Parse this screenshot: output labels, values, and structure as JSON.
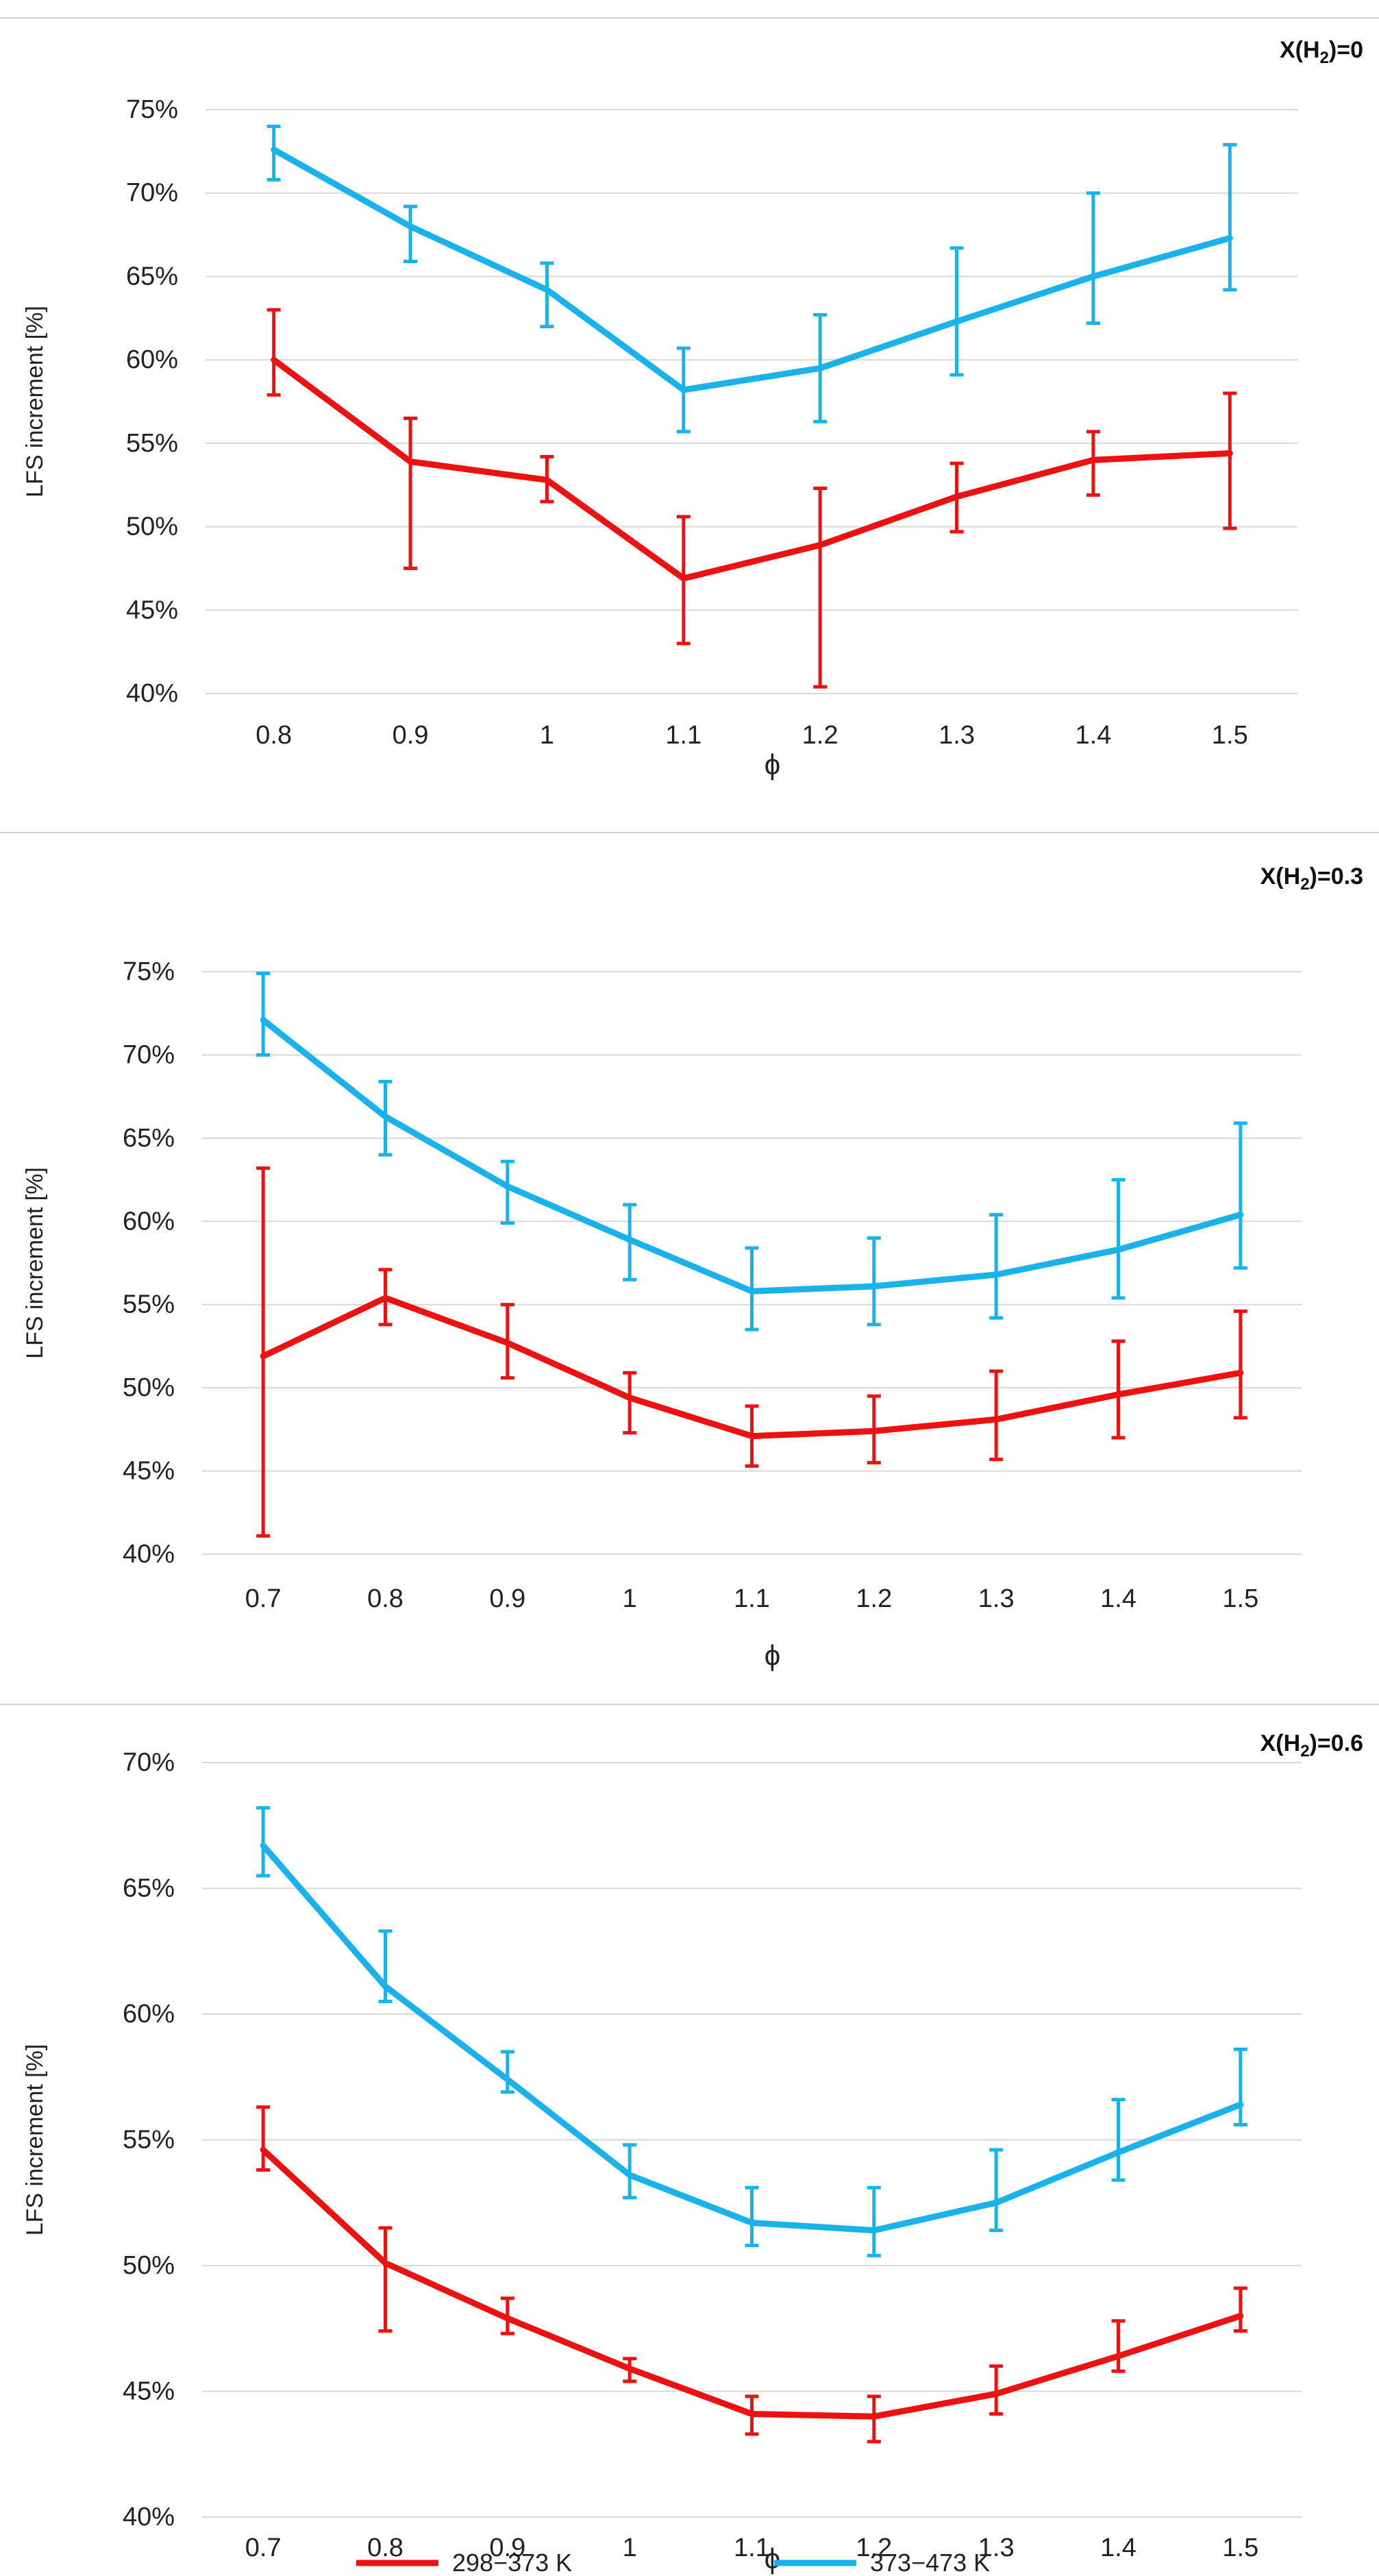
{
  "colors": {
    "series_298_373": "#ee1111",
    "series_373_473": "#1ab2ea",
    "grid": "#d9d9d9",
    "text": "#222222"
  },
  "legend": [
    "298−373 K",
    "373−473 K"
  ],
  "chart_data": [
    {
      "type": "line",
      "title": "X(H2)=0",
      "title_parts": {
        "pre": "X(H",
        "sub": "2",
        "post": ")=0"
      },
      "xlabel": "ϕ",
      "ylabel": "LFS increment [%]",
      "ylim": [
        40,
        75
      ],
      "yticks": [
        "40%",
        "45%",
        "50%",
        "55%",
        "60%",
        "65%",
        "70%",
        "75%"
      ],
      "categories": [
        "0.8",
        "0.9",
        "1",
        "1.1",
        "1.2",
        "1.3",
        "1.4",
        "1.5"
      ],
      "series": [
        {
          "name": "298−373 K",
          "values": [
            60.0,
            53.9,
            52.8,
            46.9,
            48.9,
            51.8,
            54.0,
            54.4
          ],
          "err_high": [
            63.0,
            56.5,
            54.2,
            50.6,
            52.3,
            53.8,
            55.7,
            58.0
          ],
          "err_low": [
            57.9,
            47.5,
            51.5,
            43.0,
            40.4,
            49.7,
            51.9,
            49.9
          ]
        },
        {
          "name": "373−473 K",
          "values": [
            72.6,
            68.0,
            64.2,
            58.2,
            59.5,
            62.3,
            65.0,
            67.3
          ],
          "err_high": [
            74.0,
            69.2,
            65.8,
            60.7,
            62.7,
            66.7,
            70.0,
            72.9
          ],
          "err_low": [
            70.8,
            65.9,
            62.0,
            55.7,
            56.3,
            59.1,
            62.2,
            64.2
          ]
        }
      ]
    },
    {
      "type": "line",
      "title": "X(H2)=0.3",
      "title_parts": {
        "pre": "X(H",
        "sub": "2",
        "post": ")=0.3"
      },
      "xlabel": "ϕ",
      "ylabel": "LFS increment [%]",
      "ylim": [
        40,
        75
      ],
      "yticks": [
        "40%",
        "45%",
        "50%",
        "55%",
        "60%",
        "65%",
        "70%",
        "75%"
      ],
      "categories": [
        "0.7",
        "0.8",
        "0.9",
        "1",
        "1.1",
        "1.2",
        "1.3",
        "1.4",
        "1.5"
      ],
      "series": [
        {
          "name": "298−373 K",
          "values": [
            51.9,
            55.4,
            52.7,
            49.4,
            47.1,
            47.4,
            48.1,
            49.6,
            50.9
          ],
          "err_high": [
            63.2,
            57.1,
            55.0,
            50.9,
            48.9,
            49.5,
            51.0,
            52.8,
            54.6
          ],
          "err_low": [
            41.1,
            53.8,
            50.6,
            47.3,
            45.3,
            45.5,
            45.7,
            47.0,
            48.2
          ]
        },
        {
          "name": "373−473 K",
          "values": [
            72.1,
            66.3,
            62.1,
            58.9,
            55.8,
            56.1,
            56.8,
            58.3,
            60.4
          ],
          "err_high": [
            74.9,
            68.4,
            63.6,
            61.0,
            58.4,
            59.0,
            60.4,
            62.5,
            65.9
          ],
          "err_low": [
            70.0,
            64.0,
            59.9,
            56.5,
            53.5,
            53.8,
            54.2,
            55.4,
            57.2
          ]
        }
      ]
    },
    {
      "type": "line",
      "title": "X(H2)=0.6",
      "title_parts": {
        "pre": "X(H",
        "sub": "2",
        "post": ")=0.6"
      },
      "xlabel": "ϕ",
      "ylabel": "LFS increment [%]",
      "ylim": [
        40,
        70
      ],
      "yticks": [
        "40%",
        "45%",
        "50%",
        "55%",
        "60%",
        "65%",
        "70%"
      ],
      "categories": [
        "0.7",
        "0.8",
        "0.9",
        "1",
        "1.1",
        "1.2",
        "1.3",
        "1.4",
        "1.5"
      ],
      "series": [
        {
          "name": "298−373 K",
          "values": [
            54.6,
            50.1,
            47.9,
            45.9,
            44.1,
            44.0,
            44.9,
            46.4,
            48.0
          ],
          "err_high": [
            56.3,
            51.5,
            48.7,
            46.3,
            44.8,
            44.8,
            46.0,
            47.8,
            49.1
          ],
          "err_low": [
            53.8,
            47.4,
            47.3,
            45.4,
            43.3,
            43.0,
            44.1,
            45.8,
            47.4
          ]
        },
        {
          "name": "373−473 K",
          "values": [
            66.7,
            61.1,
            57.4,
            53.6,
            51.7,
            51.4,
            52.5,
            54.5,
            56.4
          ],
          "err_high": [
            68.2,
            63.3,
            58.5,
            54.8,
            53.1,
            53.1,
            54.6,
            56.6,
            58.6
          ],
          "err_low": [
            65.5,
            60.5,
            56.9,
            52.7,
            50.8,
            50.4,
            51.4,
            53.4,
            55.6
          ]
        }
      ]
    }
  ]
}
